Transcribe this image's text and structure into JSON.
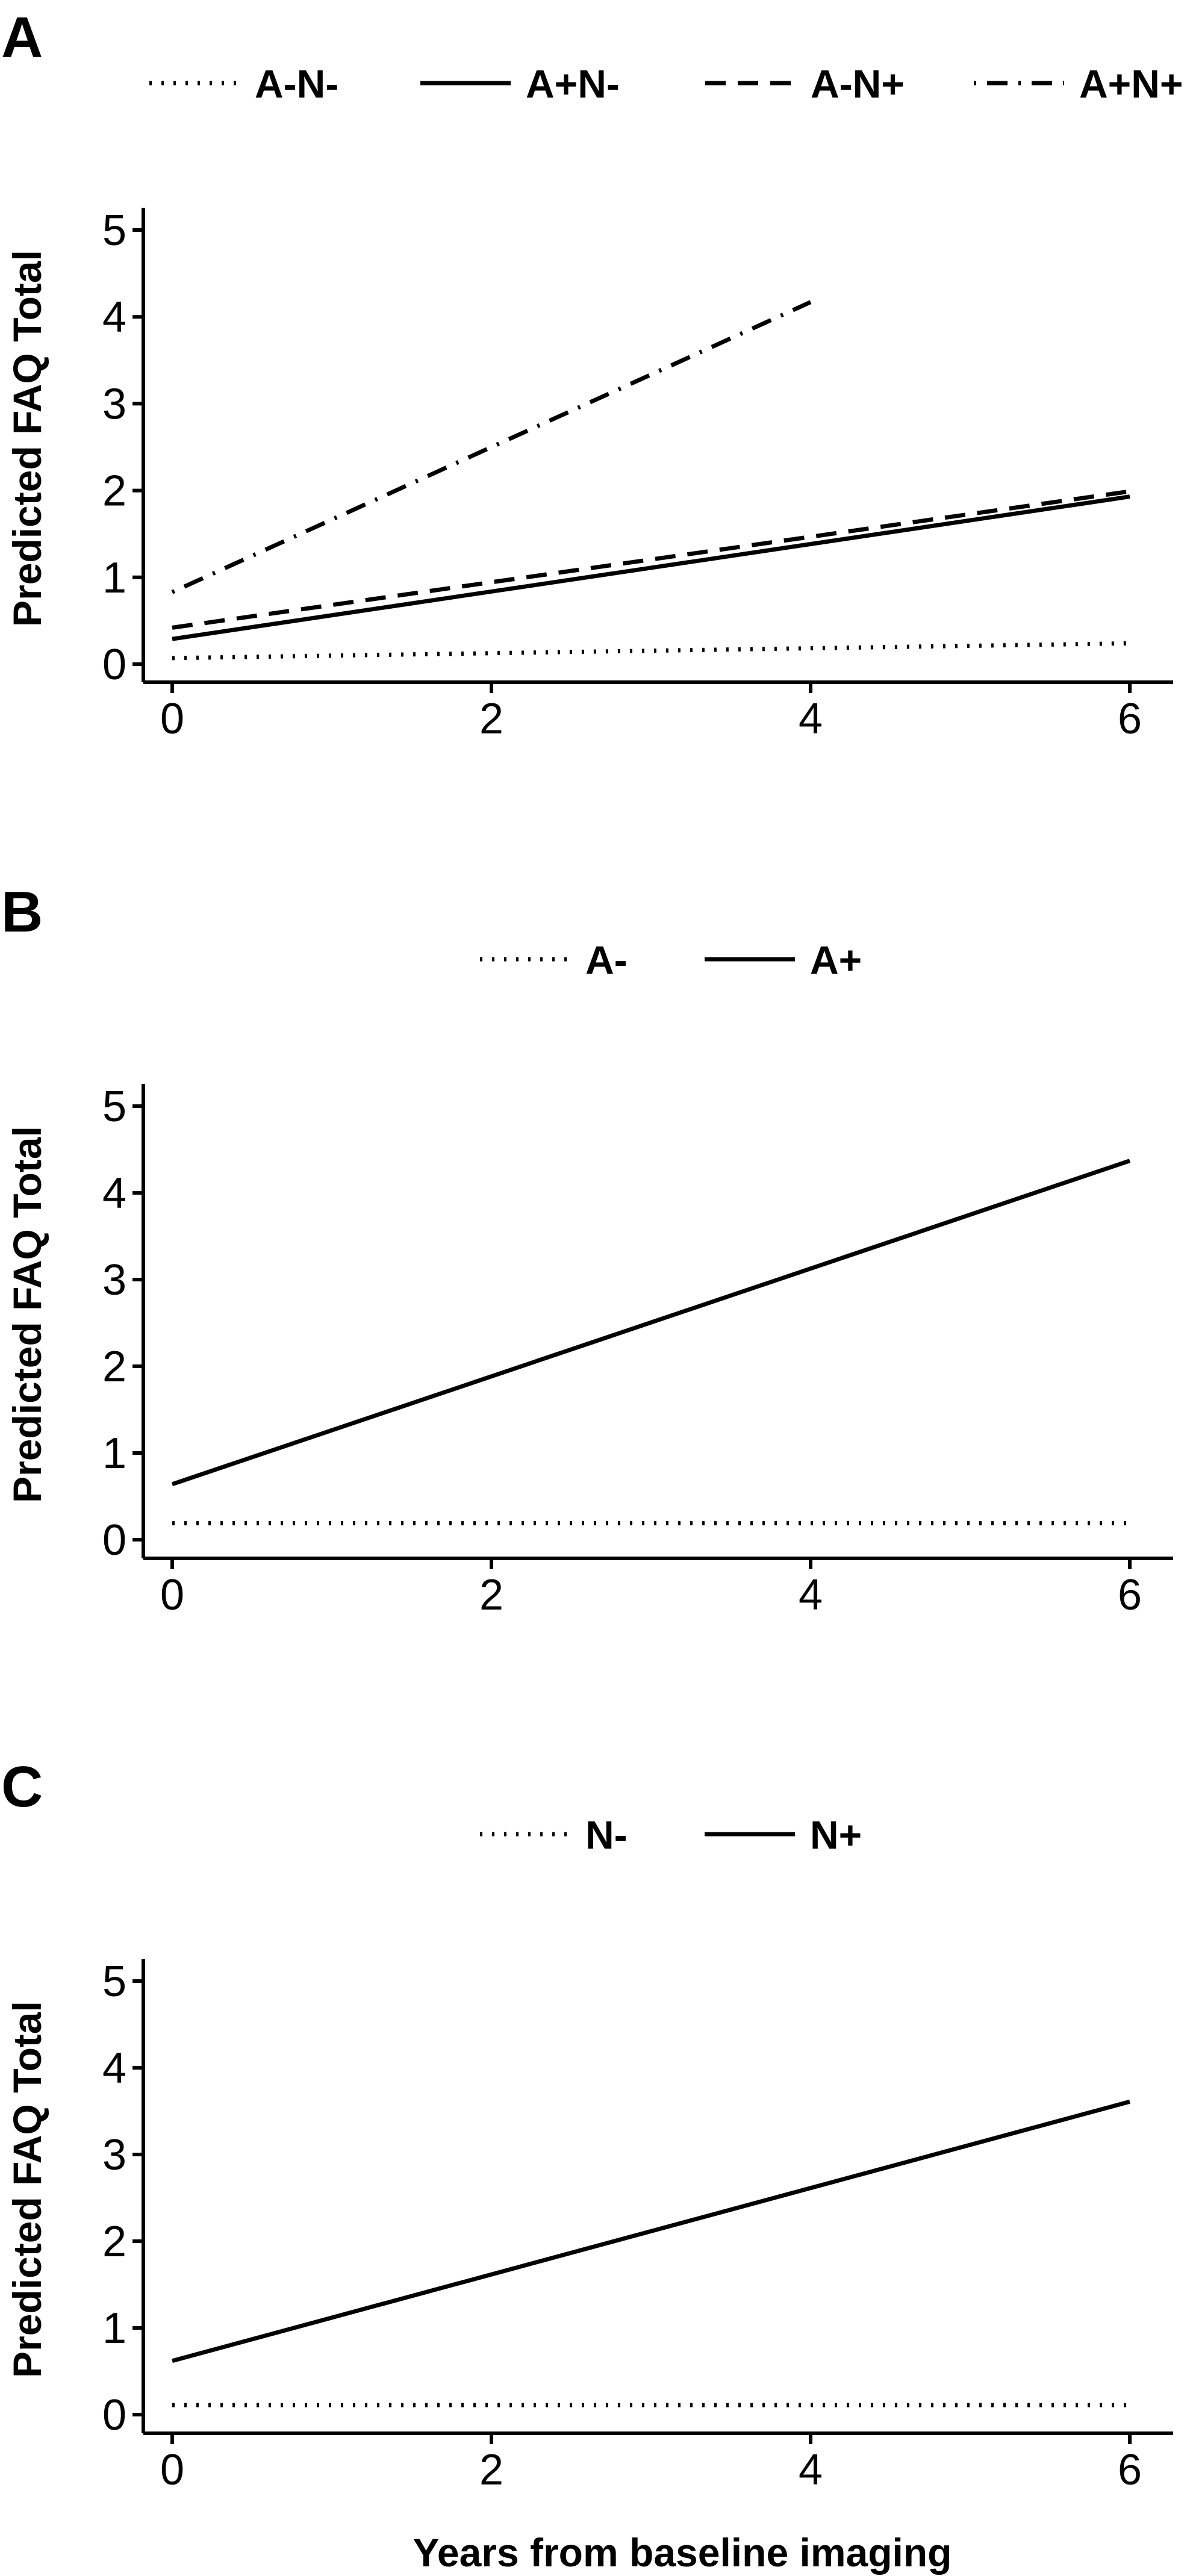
{
  "chart_data": [
    {
      "type": "line",
      "panel_label": "A",
      "xlabel": "",
      "ylabel": "Predicted FAQ Total",
      "xlim": [
        0,
        6
      ],
      "ylim": [
        0,
        5
      ],
      "xticks": [
        "0",
        "2",
        "4",
        "6"
      ],
      "yticks": [
        "0",
        "1",
        "2",
        "3",
        "4",
        "5"
      ],
      "grid": false,
      "legend_position": "top",
      "series": [
        {
          "name": "A-N-",
          "dash": "dotted",
          "x": [
            0,
            6
          ],
          "y": [
            0.07,
            0.24
          ]
        },
        {
          "name": "A+N-",
          "dash": "solid",
          "x": [
            0,
            6
          ],
          "y": [
            0.29,
            1.93
          ]
        },
        {
          "name": "A-N+",
          "dash": "dashed",
          "x": [
            0,
            6
          ],
          "y": [
            0.42,
            1.99
          ]
        },
        {
          "name": "A+N+",
          "dash": "dotdash",
          "x": [
            0,
            4
          ],
          "y": [
            0.83,
            4.17
          ]
        }
      ]
    },
    {
      "type": "line",
      "panel_label": "B",
      "xlabel": "",
      "ylabel": "Predicted FAQ Total",
      "xlim": [
        0,
        6
      ],
      "ylim": [
        0,
        5
      ],
      "xticks": [
        "0",
        "2",
        "4",
        "6"
      ],
      "yticks": [
        "0",
        "1",
        "2",
        "3",
        "4",
        "5"
      ],
      "grid": false,
      "legend_position": "top",
      "series": [
        {
          "name": "A-",
          "dash": "dotted",
          "x": [
            0,
            6
          ],
          "y": [
            0.19,
            0.19
          ]
        },
        {
          "name": "A+",
          "dash": "solid",
          "x": [
            0,
            6
          ],
          "y": [
            0.64,
            4.37
          ]
        }
      ]
    },
    {
      "type": "line",
      "panel_label": "C",
      "xlabel": "Years from baseline imaging",
      "ylabel": "Predicted FAQ Total",
      "xlim": [
        0,
        6
      ],
      "ylim": [
        0,
        5
      ],
      "xticks": [
        "0",
        "2",
        "4",
        "6"
      ],
      "yticks": [
        "0",
        "1",
        "2",
        "3",
        "4",
        "5"
      ],
      "grid": false,
      "legend_position": "top",
      "series": [
        {
          "name": "N-",
          "dash": "dotted",
          "x": [
            0,
            6
          ],
          "y": [
            0.11,
            0.11
          ]
        },
        {
          "name": "N+",
          "dash": "solid",
          "x": [
            0,
            6
          ],
          "y": [
            0.62,
            3.61
          ]
        }
      ]
    }
  ]
}
